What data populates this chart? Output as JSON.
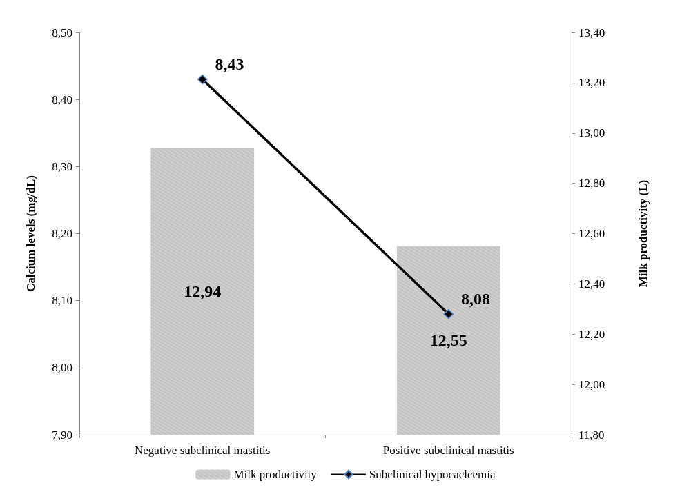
{
  "chart_data": {
    "type": "bar",
    "ylabel": "Calcium levels (mg/dL)",
    "y2label": "Milk productivity (L)",
    "categories": [
      "Negative subclinical mastitis",
      "Positive subclinical mastitis"
    ],
    "series": [
      {
        "name": "Milk productivity",
        "axis": "y2",
        "color": "#cfcfcf",
        "values": [
          12.94,
          12.55
        ],
        "value_labels": [
          "12,94",
          "12,55"
        ]
      },
      {
        "name": "Subclinical hypocaelcemia",
        "type": "line",
        "axis": "y",
        "color": "#000000",
        "marker": "diamond",
        "values": [
          8.43,
          8.08
        ],
        "value_labels": [
          "8,43",
          "8,08"
        ]
      }
    ],
    "ylim": [
      7.9,
      8.5
    ],
    "yticks": [
      {
        "value": 7.9,
        "label": "7,90"
      },
      {
        "value": 8.0,
        "label": "8,00"
      },
      {
        "value": 8.1,
        "label": "8,10"
      },
      {
        "value": 8.2,
        "label": "8,20"
      },
      {
        "value": 8.3,
        "label": "8,30"
      },
      {
        "value": 8.4,
        "label": "8,40"
      },
      {
        "value": 8.5,
        "label": "8,50"
      }
    ],
    "y2lim": [
      11.8,
      13.4
    ],
    "y2ticks": [
      {
        "value": 11.8,
        "label": "11,80"
      },
      {
        "value": 12.0,
        "label": "12,00"
      },
      {
        "value": 12.2,
        "label": "12,20"
      },
      {
        "value": 12.4,
        "label": "12,40"
      },
      {
        "value": 12.6,
        "label": "12,60"
      },
      {
        "value": 12.8,
        "label": "12,80"
      },
      {
        "value": 13.0,
        "label": "13,00"
      },
      {
        "value": 13.2,
        "label": "13,20"
      },
      {
        "value": 13.4,
        "label": "13,40"
      }
    ],
    "grid": false,
    "legend": "bottom"
  }
}
